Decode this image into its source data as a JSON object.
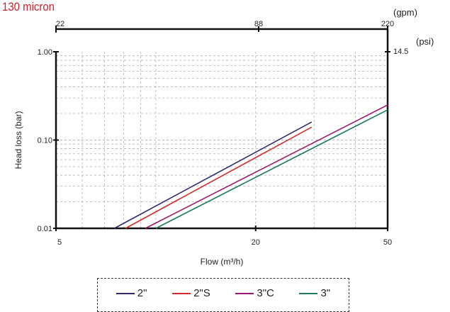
{
  "title": "130 micron",
  "chart_data": {
    "type": "line",
    "title": "130 micron",
    "xlabel": "Flow (m³/h)",
    "ylabel": "Head loss (bar)",
    "x_scale": "log",
    "y_scale": "log",
    "xlim": [
      5,
      50
    ],
    "ylim": [
      0.01,
      1.0
    ],
    "x_ticks": [
      "5",
      "20",
      "50"
    ],
    "y_ticks": [
      "0.01",
      "0.10",
      "1.00"
    ],
    "top_axis": {
      "unit_label": "(gpm)",
      "ticks": [
        "22",
        "88",
        "220"
      ]
    },
    "right_axis": {
      "unit_label": "(psi)",
      "ticks": [
        "14.5"
      ]
    },
    "grid": true,
    "legend_position": "bottom",
    "series": [
      {
        "name": "2\"",
        "color": "#2e2a6e",
        "x": [
          7.5,
          29.5
        ],
        "y": [
          0.01,
          0.16
        ]
      },
      {
        "name": "2\"S",
        "color": "#d42a2a",
        "x": [
          8.1,
          29.5
        ],
        "y": [
          0.01,
          0.14
        ]
      },
      {
        "name": "3\"C",
        "color": "#9c1a6e",
        "x": [
          9.3,
          50
        ],
        "y": [
          0.01,
          0.25
        ]
      },
      {
        "name": "3\"",
        "color": "#1f7a5c",
        "x": [
          10.0,
          50
        ],
        "y": [
          0.01,
          0.22
        ]
      }
    ]
  }
}
